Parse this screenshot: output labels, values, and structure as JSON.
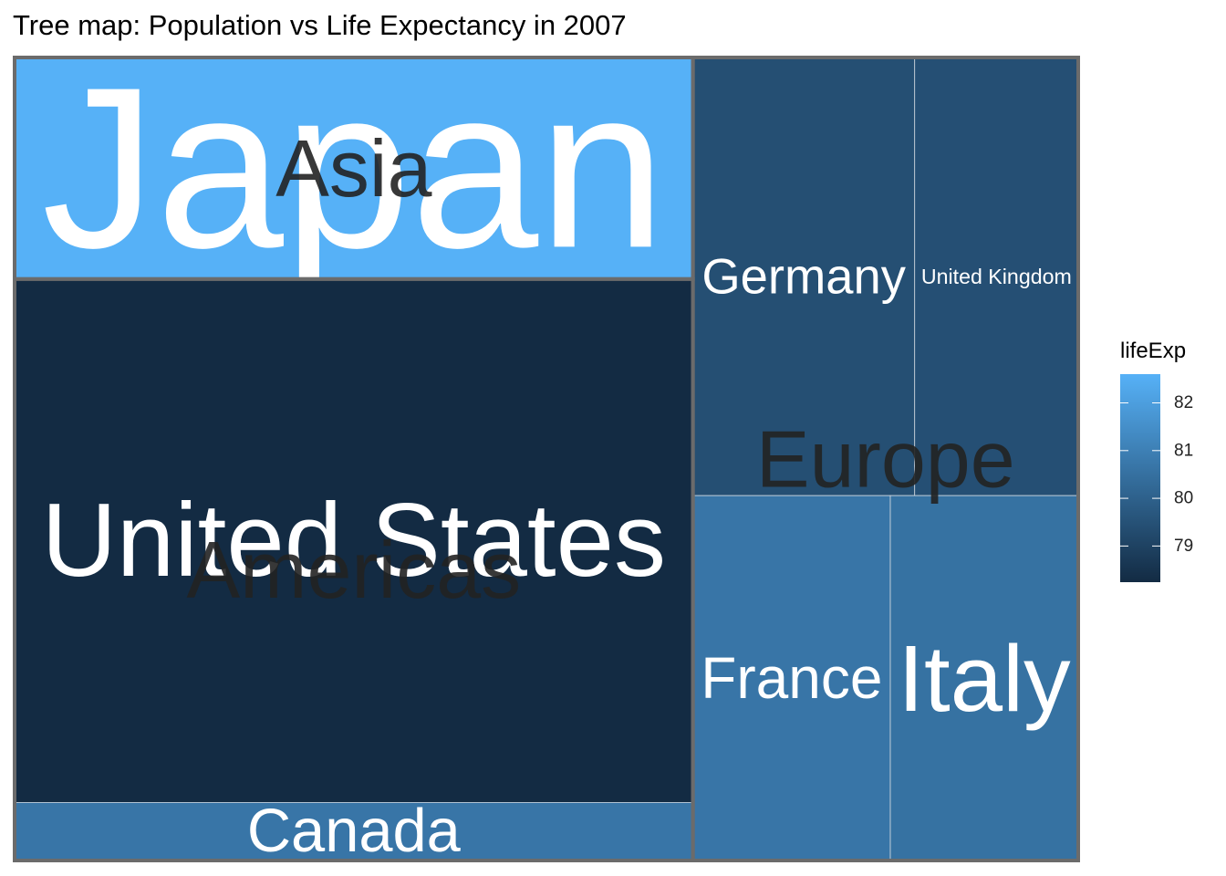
{
  "chart_data": {
    "type": "treemap",
    "title": "Tree map: Population vs Life Expectancy in 2007",
    "groups": [
      {
        "name": "Asia",
        "countries": [
          "Japan"
        ],
        "population": [
          127467972
        ],
        "lifeExp": [
          82.603
        ]
      },
      {
        "name": "Americas",
        "countries": [
          "United States",
          "Canada"
        ],
        "population": [
          301139947,
          33390141
        ],
        "lifeExp": [
          78.242,
          80.653
        ]
      },
      {
        "name": "Europe",
        "countries": [
          "Germany",
          "United Kingdom",
          "France",
          "Italy"
        ],
        "population": [
          82400996,
          60776238,
          61083916,
          58147733
        ],
        "lifeExp": [
          79.406,
          79.425,
          80.657,
          80.546
        ]
      }
    ],
    "colors": [
      "#132B43",
      "#56B1F7"
    ],
    "legend": {
      "title": "lifeExp",
      "ticks": [
        79,
        80,
        81,
        82
      ]
    }
  }
}
